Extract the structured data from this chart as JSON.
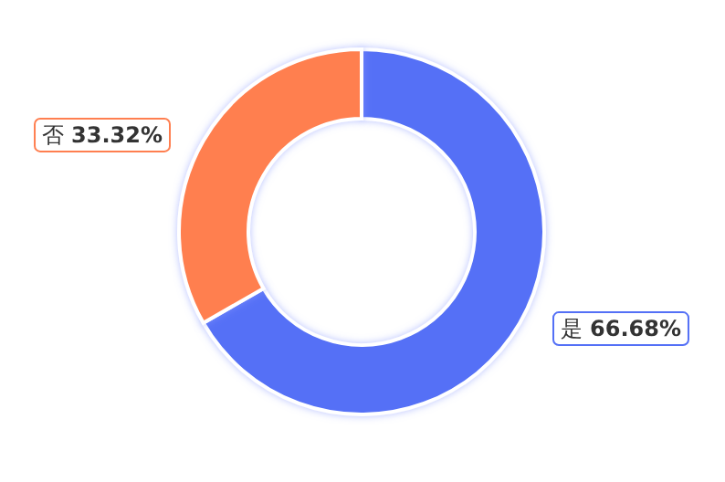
{
  "chart_data": {
    "type": "donut",
    "categories": [
      "是",
      "否"
    ],
    "values": [
      66.68,
      33.32
    ],
    "colors": [
      "#5470f6",
      "#ff7f50"
    ],
    "value_labels": [
      "66.68%",
      "33.32%"
    ],
    "legend": false
  }
}
